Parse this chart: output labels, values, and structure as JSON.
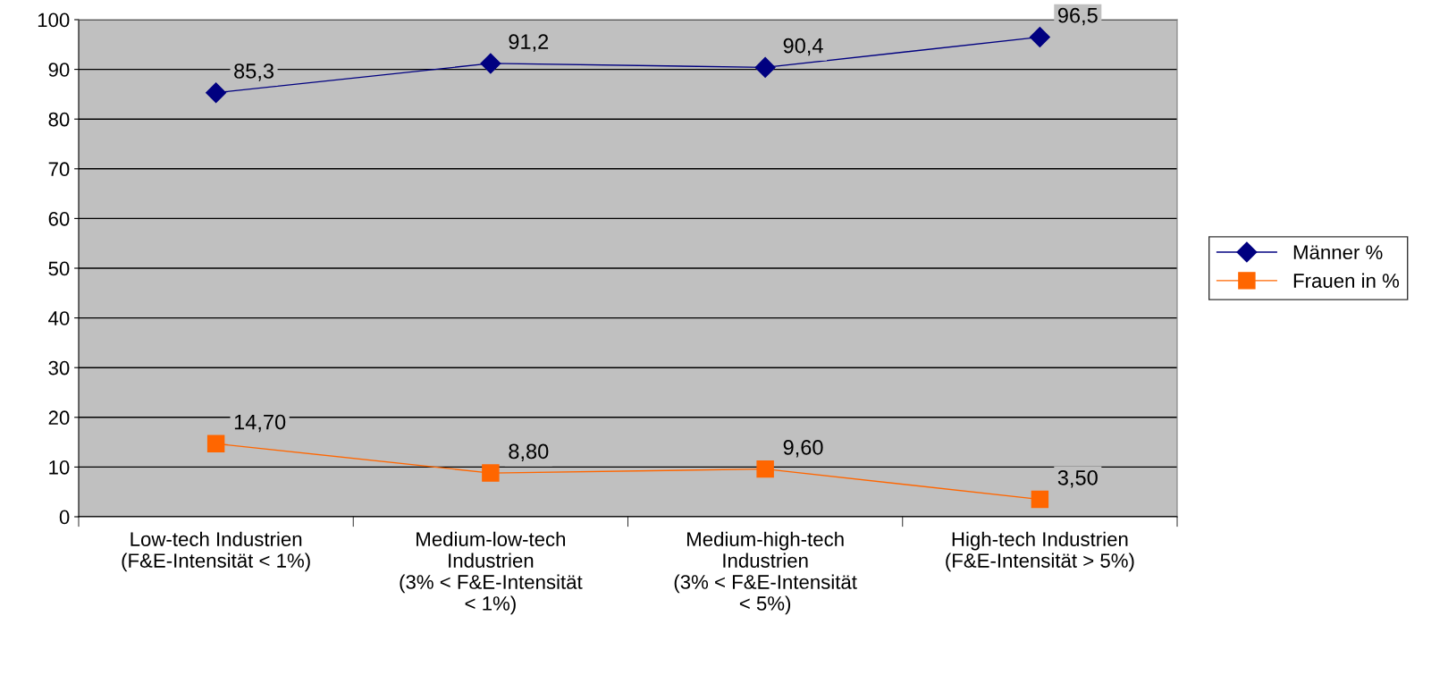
{
  "chart_data": {
    "type": "line",
    "categories": [
      "Low-tech Industrien\n(F&E-Intensität < 1%)",
      "Medium-low-tech\nIndustrien\n(3% < F&E-Intensität\n< 1%)",
      "Medium-high-tech\nIndustrien\n(3% < F&E-Intensität\n< 5%)",
      "High-tech Industrien\n(F&E-Intensität > 5%)"
    ],
    "series": [
      {
        "name": "Männer %",
        "color": "#000080",
        "values": [
          85.3,
          91.2,
          90.4,
          96.5
        ],
        "marker": "diamond",
        "value_labels": [
          "85,3",
          "91,2",
          "90,4",
          "96,5"
        ]
      },
      {
        "name": "Frauen in %",
        "color": "#ff6600",
        "values": [
          14.7,
          8.8,
          9.6,
          3.5
        ],
        "marker": "square",
        "value_labels": [
          "14,70",
          "8,80",
          "9,60",
          "3,50"
        ]
      }
    ],
    "ylim": [
      0,
      100
    ],
    "yticks": [
      0,
      10,
      20,
      30,
      40,
      50,
      60,
      70,
      80,
      90,
      100
    ],
    "grid": "y",
    "legend": "right",
    "line_style": "solid"
  }
}
